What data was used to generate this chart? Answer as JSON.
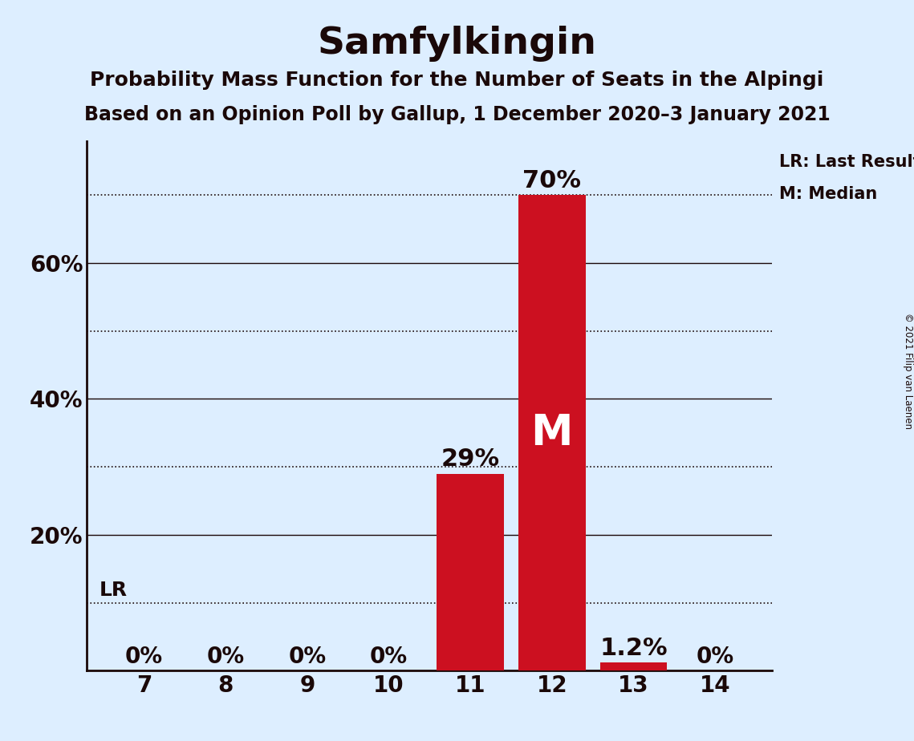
{
  "title": "Samfylkingin",
  "subtitle1": "Probability Mass Function for the Number of Seats in the Alpingi",
  "subtitle2": "Based on an Opinion Poll by Gallup, 1 December 2020–3 January 2021",
  "copyright": "© 2021 Filip van Laenen",
  "categories": [
    7,
    8,
    9,
    10,
    11,
    12,
    13,
    14
  ],
  "values": [
    0.0,
    0.0,
    0.0,
    0.0,
    0.29,
    0.7,
    0.012,
    0.0
  ],
  "bar_labels": [
    "0%",
    "0%",
    "0%",
    "0%",
    "29%",
    "70%",
    "1.2%",
    "0%"
  ],
  "bar_color": "#CC1020",
  "median_bar": 12,
  "lr_value": 0.1,
  "background_color": "#ddeeff",
  "text_color": "#1a0808",
  "solid_gridlines": [
    0.2,
    0.4,
    0.6
  ],
  "dotted_gridlines": [
    0.1,
    0.3,
    0.5,
    0.7
  ],
  "ytick_positions": [
    0.2,
    0.4,
    0.6
  ],
  "ytick_labels": [
    "20%",
    "40%",
    "60%"
  ],
  "ylim": [
    0,
    0.78
  ],
  "xlim": [
    6.3,
    14.7
  ],
  "legend_lr": "LR: Last Result",
  "legend_m": "M: Median",
  "bar_label_fontsize": 20,
  "tick_fontsize": 20,
  "title_fontsize": 34,
  "subtitle1_fontsize": 18,
  "subtitle2_fontsize": 17
}
